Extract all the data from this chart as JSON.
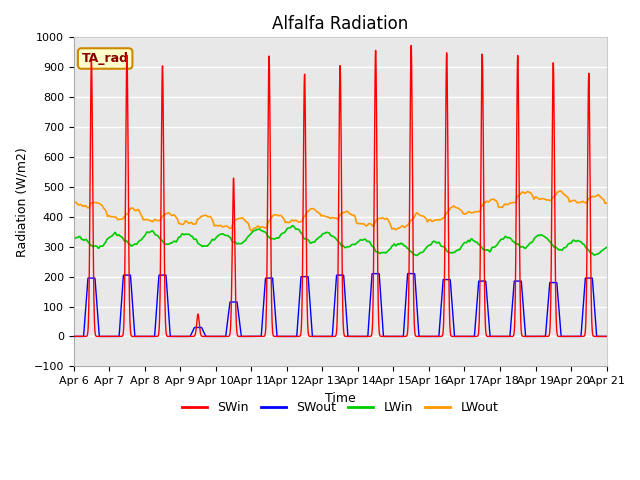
{
  "title": "Alfalfa Radiation",
  "xlabel": "Time",
  "ylabel": "Radiation (W/m2)",
  "ylim": [
    -100,
    1000
  ],
  "legend_entries": [
    "SWin",
    "SWout",
    "LWin",
    "LWout"
  ],
  "legend_colors": [
    "#ff0000",
    "#0000ff",
    "#00cc00",
    "#ff9900"
  ],
  "annotation_text": "TA_rad",
  "annotation_bg": "#ffffcc",
  "annotation_border": "#cc8800",
  "plot_bg": "#e8e8e8",
  "grid_color": "#ffffff",
  "title_fontsize": 12,
  "axis_fontsize": 9,
  "tick_fontsize": 8,
  "legend_fontsize": 9,
  "day_peaks_SWin": [
    920,
    940,
    905,
    75,
    530,
    940,
    880,
    910,
    960,
    975,
    950,
    945,
    940,
    915,
    880
  ],
  "day_peaks_SWout": [
    195,
    205,
    205,
    30,
    115,
    195,
    200,
    205,
    210,
    210,
    190,
    185,
    185,
    180,
    195
  ]
}
